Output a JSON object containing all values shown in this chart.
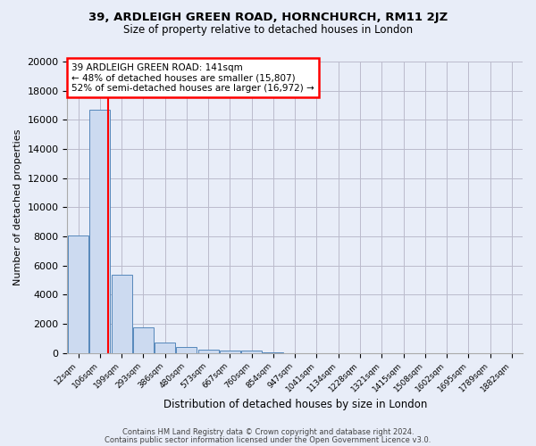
{
  "title1": "39, ARDLEIGH GREEN ROAD, HORNCHURCH, RM11 2JZ",
  "title2": "Size of property relative to detached houses in London",
  "xlabel": "Distribution of detached houses by size in London",
  "ylabel": "Number of detached properties",
  "bar_labels": [
    "12sqm",
    "106sqm",
    "199sqm",
    "293sqm",
    "386sqm",
    "480sqm",
    "573sqm",
    "667sqm",
    "760sqm",
    "854sqm",
    "947sqm",
    "1041sqm",
    "1134sqm",
    "1228sqm",
    "1321sqm",
    "1415sqm",
    "1508sqm",
    "1602sqm",
    "1695sqm",
    "1789sqm",
    "1882sqm"
  ],
  "bar_values": [
    8050,
    16700,
    5350,
    1750,
    680,
    380,
    230,
    170,
    130,
    60,
    0,
    0,
    0,
    0,
    0,
    0,
    0,
    0,
    0,
    0,
    0
  ],
  "bar_color": "#ccdaf0",
  "bar_edge_color": "#5588bb",
  "red_line_x": 1.38,
  "annotation_line1": "39 ARDLEIGH GREEN ROAD: 141sqm",
  "annotation_line2": "← 48% of detached houses are smaller (15,807)",
  "annotation_line3": "52% of semi-detached houses are larger (16,972) →",
  "annotation_box_color": "white",
  "annotation_box_edge": "red",
  "ylim": [
    0,
    20000
  ],
  "yticks": [
    0,
    2000,
    4000,
    6000,
    8000,
    10000,
    12000,
    14000,
    16000,
    18000,
    20000
  ],
  "ytick_labels": [
    "0",
    "2000",
    "4000",
    "6000",
    "8000",
    "10000",
    "12000",
    "14000",
    "16000",
    "18000",
    "20000"
  ],
  "grid_color": "#bbbbcc",
  "bg_color": "#e8edf8",
  "footer1": "Contains HM Land Registry data © Crown copyright and database right 2024.",
  "footer2": "Contains public sector information licensed under the Open Government Licence v3.0."
}
